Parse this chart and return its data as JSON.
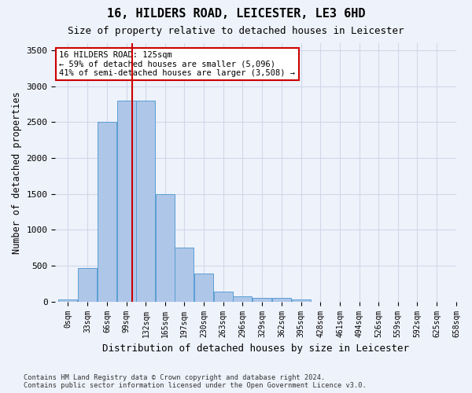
{
  "title": "16, HILDERS ROAD, LEICESTER, LE3 6HD",
  "subtitle": "Size of property relative to detached houses in Leicester",
  "xlabel": "Distribution of detached houses by size in Leicester",
  "ylabel": "Number of detached properties",
  "footer_line1": "Contains HM Land Registry data © Crown copyright and database right 2024.",
  "footer_line2": "Contains public sector information licensed under the Open Government Licence v3.0.",
  "bin_labels": [
    "0sqm",
    "33sqm",
    "66sqm",
    "99sqm",
    "132sqm",
    "165sqm",
    "197sqm",
    "230sqm",
    "263sqm",
    "296sqm",
    "329sqm",
    "362sqm",
    "395sqm",
    "428sqm",
    "461sqm",
    "494sqm",
    "526sqm",
    "559sqm",
    "592sqm",
    "625sqm",
    "658sqm"
  ],
  "bin_edges": [
    0,
    33,
    66,
    99,
    132,
    165,
    197,
    230,
    263,
    296,
    329,
    362,
    395,
    428,
    461,
    494,
    526,
    559,
    592,
    625,
    658
  ],
  "bar_heights": [
    30,
    470,
    2500,
    2800,
    2800,
    1500,
    750,
    390,
    140,
    70,
    55,
    55,
    30,
    0,
    0,
    0,
    0,
    0,
    0,
    0
  ],
  "bar_color": "#aec6e8",
  "bar_edge_color": "#5a9fd4",
  "grid_color": "#d0d8e8",
  "background_color": "#eef2fa",
  "property_value": 125,
  "property_label": "16 HILDERS ROAD: 125sqm",
  "annotation_line1": "16 HILDERS ROAD: 125sqm",
  "annotation_line2": "← 59% of detached houses are smaller (5,096)",
  "annotation_line3": "41% of semi-detached houses are larger (3,508) →",
  "annotation_box_color": "#ffffff",
  "annotation_box_edge": "#cc0000",
  "vline_color": "#cc0000",
  "ylim": [
    0,
    3600
  ],
  "yticks": [
    0,
    500,
    1000,
    1500,
    2000,
    2500,
    3000,
    3500
  ]
}
